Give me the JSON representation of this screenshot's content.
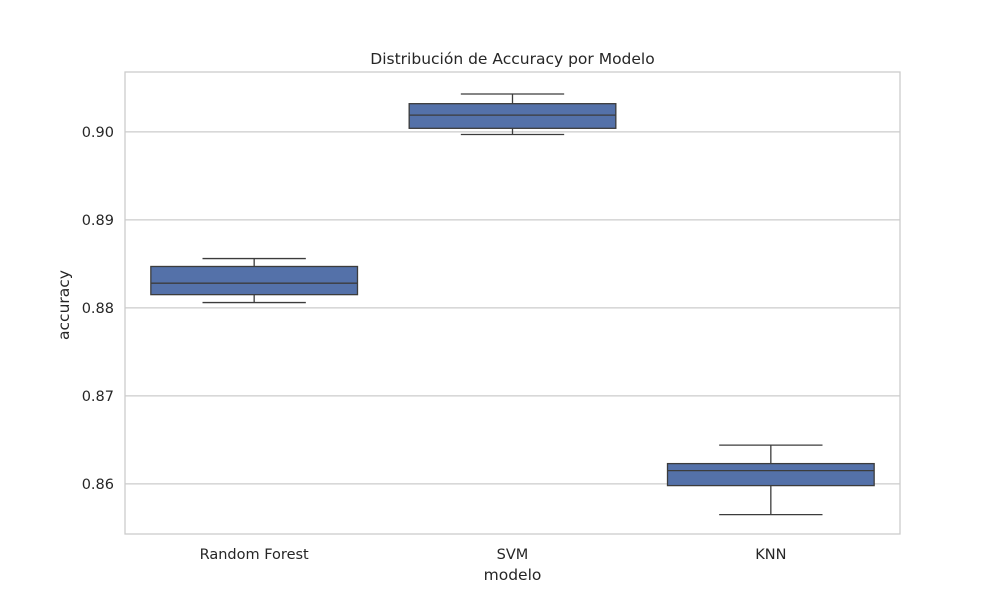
{
  "chart_data": {
    "type": "box",
    "title": "Distribución de Accuracy por Modelo",
    "xlabel": "modelo",
    "ylabel": "accuracy",
    "ylim": [
      0.8543,
      0.9068
    ],
    "yticks": [
      0.86,
      0.87,
      0.88,
      0.89,
      0.9
    ],
    "ytick_labels": [
      "0.86",
      "0.87",
      "0.88",
      "0.89",
      "0.90"
    ],
    "grid": true,
    "categories": [
      "Random Forest",
      "SVM",
      "KNN"
    ],
    "boxes": [
      {
        "category": "Random Forest",
        "whisker_low": 0.8806,
        "q1": 0.8815,
        "median": 0.8828,
        "q3": 0.8847,
        "whisker_high": 0.8856
      },
      {
        "category": "SVM",
        "whisker_low": 0.8997,
        "q1": 0.9004,
        "median": 0.9019,
        "q3": 0.9032,
        "whisker_high": 0.9043
      },
      {
        "category": "KNN",
        "whisker_low": 0.8565,
        "q1": 0.8598,
        "median": 0.8615,
        "q3": 0.8623,
        "whisker_high": 0.8644
      }
    ],
    "colors": {
      "box_fill": "#5471a9",
      "box_edge": "#3c3c3c",
      "grid": "#cccccc",
      "frame": "#cccccc",
      "background": "#ffffff"
    }
  }
}
